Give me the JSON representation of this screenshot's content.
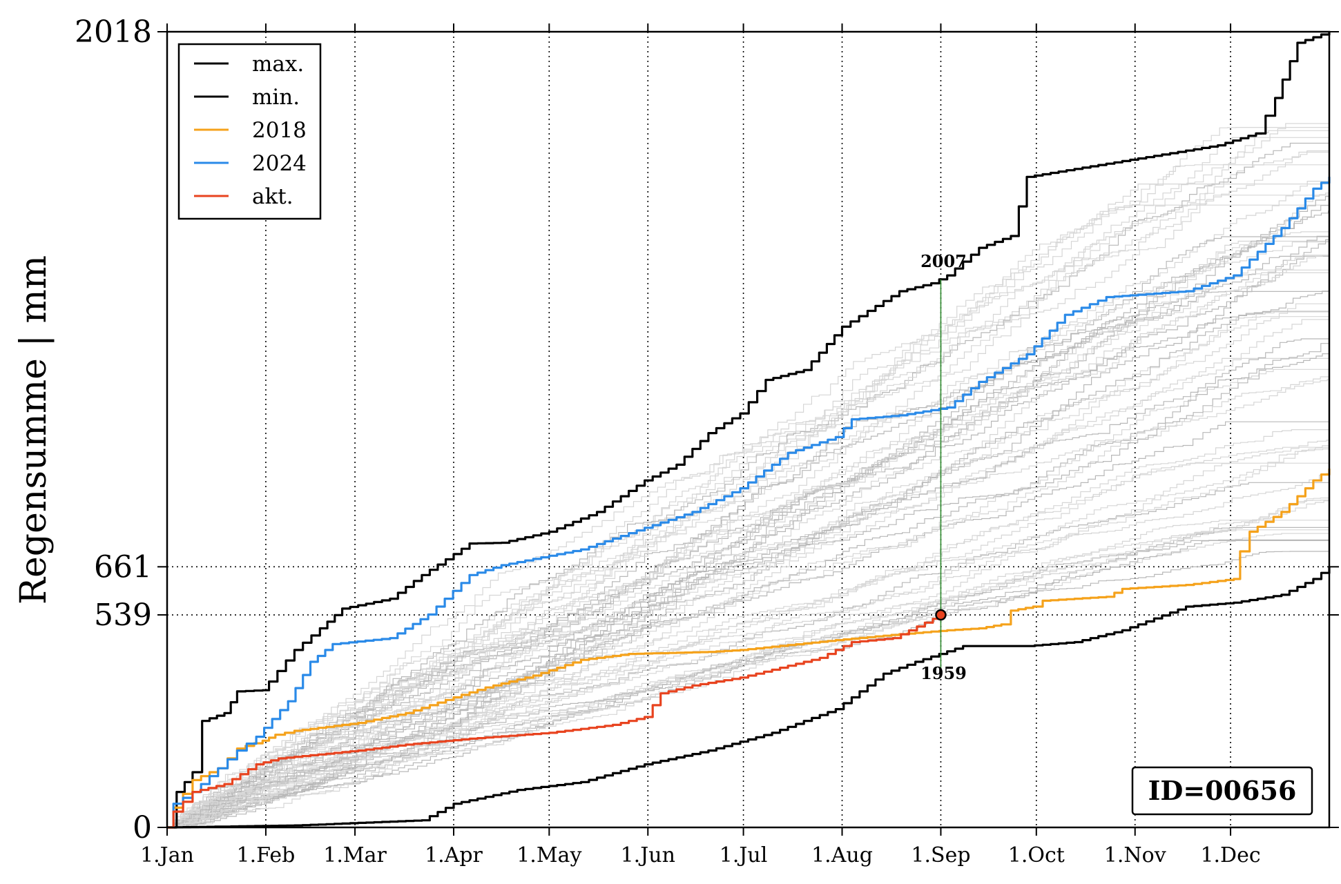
{
  "chart_data": {
    "type": "line",
    "title": "",
    "ylabel": "Regensumme | mm",
    "xlabel": "",
    "x_domain_days": [
      0,
      365
    ],
    "ylim": [
      0,
      2018
    ],
    "yticks": [
      0,
      539,
      661,
      2018
    ],
    "xticks": [
      {
        "label": "1.Jan",
        "day": 0
      },
      {
        "label": "1.Feb",
        "day": 31
      },
      {
        "label": "1.Mar",
        "day": 59
      },
      {
        "label": "1.Apr",
        "day": 90
      },
      {
        "label": "1.May",
        "day": 120
      },
      {
        "label": "1.Jun",
        "day": 151
      },
      {
        "label": "1.Jul",
        "day": 181
      },
      {
        "label": "1.Aug",
        "day": 212
      },
      {
        "label": "1.Sep",
        "day": 243
      },
      {
        "label": "1.Oct",
        "day": 273
      },
      {
        "label": "1.Nov",
        "day": 304
      },
      {
        "label": "1.Dec",
        "day": 334
      }
    ],
    "grid": true,
    "legend_position": "top-left",
    "series": [
      {
        "name": "max.",
        "color": "#000000",
        "width": 3.2,
        "points": [
          [
            0,
            0
          ],
          [
            3,
            90
          ],
          [
            8,
            140
          ],
          [
            11,
            270
          ],
          [
            18,
            290
          ],
          [
            22,
            345
          ],
          [
            30,
            348
          ],
          [
            32,
            370
          ],
          [
            40,
            450
          ],
          [
            48,
            505
          ],
          [
            55,
            555
          ],
          [
            70,
            580
          ],
          [
            80,
            640
          ],
          [
            95,
            720
          ],
          [
            105,
            722
          ],
          [
            120,
            750
          ],
          [
            135,
            800
          ],
          [
            150,
            880
          ],
          [
            160,
            920
          ],
          [
            170,
            1000
          ],
          [
            180,
            1050
          ],
          [
            188,
            1135
          ],
          [
            200,
            1160
          ],
          [
            212,
            1270
          ],
          [
            220,
            1310
          ],
          [
            230,
            1360
          ],
          [
            240,
            1380
          ],
          [
            245,
            1400
          ],
          [
            255,
            1470
          ],
          [
            265,
            1500
          ],
          [
            270,
            1650
          ],
          [
            285,
            1670
          ],
          [
            300,
            1690
          ],
          [
            330,
            1730
          ],
          [
            342,
            1760
          ],
          [
            348,
            1850
          ],
          [
            355,
            1990
          ],
          [
            365,
            2018
          ]
        ]
      },
      {
        "name": "min.",
        "color": "#000000",
        "width": 3.2,
        "points": [
          [
            0,
            0
          ],
          [
            40,
            5
          ],
          [
            80,
            18
          ],
          [
            90,
            60
          ],
          [
            110,
            95
          ],
          [
            130,
            115
          ],
          [
            150,
            160
          ],
          [
            170,
            195
          ],
          [
            190,
            240
          ],
          [
            210,
            300
          ],
          [
            225,
            390
          ],
          [
            235,
            420
          ],
          [
            250,
            460
          ],
          [
            270,
            460
          ],
          [
            285,
            470
          ],
          [
            300,
            500
          ],
          [
            320,
            560
          ],
          [
            335,
            570
          ],
          [
            350,
            590
          ],
          [
            360,
            630
          ],
          [
            365,
            661
          ]
        ]
      },
      {
        "name": "2018",
        "color": "#f5a21b",
        "width": 3.2,
        "points": [
          [
            0,
            0
          ],
          [
            2,
            50
          ],
          [
            8,
            120
          ],
          [
            16,
            150
          ],
          [
            22,
            200
          ],
          [
            30,
            220
          ],
          [
            34,
            235
          ],
          [
            40,
            245
          ],
          [
            60,
            265
          ],
          [
            75,
            290
          ],
          [
            90,
            330
          ],
          [
            100,
            355
          ],
          [
            115,
            385
          ],
          [
            130,
            425
          ],
          [
            145,
            440
          ],
          [
            170,
            445
          ],
          [
            180,
            450
          ],
          [
            210,
            475
          ],
          [
            230,
            490
          ],
          [
            245,
            500
          ],
          [
            255,
            505
          ],
          [
            262,
            515
          ],
          [
            265,
            550
          ],
          [
            272,
            560
          ],
          [
            275,
            575
          ],
          [
            295,
            585
          ],
          [
            300,
            605
          ],
          [
            320,
            615
          ],
          [
            335,
            630
          ],
          [
            337,
            700
          ],
          [
            340,
            750
          ],
          [
            350,
            800
          ],
          [
            360,
            880
          ],
          [
            365,
            910
          ]
        ]
      },
      {
        "name": "2024",
        "color": "#2a8ae8",
        "width": 3.2,
        "points": [
          [
            0,
            0
          ],
          [
            2,
            60
          ],
          [
            8,
            90
          ],
          [
            16,
            150
          ],
          [
            22,
            195
          ],
          [
            28,
            230
          ],
          [
            38,
            320
          ],
          [
            45,
            420
          ],
          [
            52,
            465
          ],
          [
            70,
            480
          ],
          [
            82,
            540
          ],
          [
            95,
            640
          ],
          [
            105,
            665
          ],
          [
            130,
            705
          ],
          [
            150,
            760
          ],
          [
            165,
            800
          ],
          [
            180,
            860
          ],
          [
            195,
            950
          ],
          [
            210,
            990
          ],
          [
            215,
            1035
          ],
          [
            230,
            1045
          ],
          [
            245,
            1065
          ],
          [
            255,
            1130
          ],
          [
            270,
            1200
          ],
          [
            282,
            1300
          ],
          [
            295,
            1345
          ],
          [
            320,
            1360
          ],
          [
            335,
            1400
          ],
          [
            350,
            1520
          ],
          [
            360,
            1620
          ],
          [
            365,
            1650
          ]
        ]
      },
      {
        "name": "akt.",
        "color": "#e8431f",
        "width": 3.2,
        "points": [
          [
            0,
            0
          ],
          [
            2,
            40
          ],
          [
            8,
            90
          ],
          [
            18,
            110
          ],
          [
            28,
            160
          ],
          [
            35,
            175
          ],
          [
            60,
            195
          ],
          [
            75,
            210
          ],
          [
            95,
            225
          ],
          [
            120,
            240
          ],
          [
            140,
            260
          ],
          [
            150,
            280
          ],
          [
            155,
            340
          ],
          [
            165,
            360
          ],
          [
            180,
            380
          ],
          [
            195,
            410
          ],
          [
            205,
            430
          ],
          [
            215,
            470
          ],
          [
            228,
            480
          ],
          [
            243,
            539
          ]
        ]
      }
    ],
    "annotations": [
      {
        "label": "2007",
        "day": 243,
        "value": 1390,
        "position": "above"
      },
      {
        "label": "1959",
        "day": 243,
        "value": 460,
        "position": "below"
      }
    ],
    "current_marker": {
      "day": 243,
      "value": 539
    },
    "id_label": "ID=00656"
  }
}
